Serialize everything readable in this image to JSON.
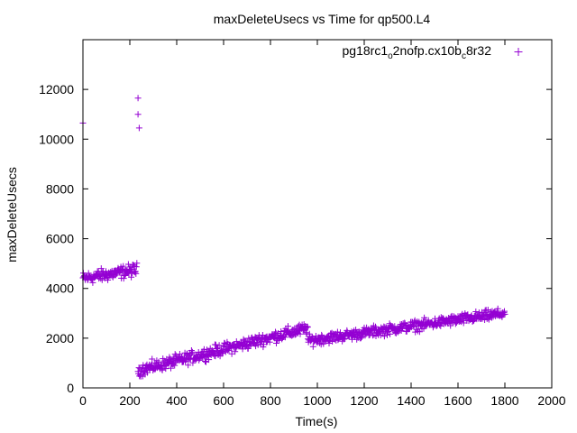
{
  "chart_data": {
    "type": "scatter",
    "title": "maxDeleteUsecs vs Time for qp500.L4",
    "xlabel": "Time(s)",
    "ylabel": "maxDeleteUsecs",
    "xlim": [
      0,
      2000
    ],
    "ylim": [
      0,
      14000
    ],
    "xticks": [
      0,
      200,
      400,
      600,
      800,
      1000,
      1200,
      1400,
      1600,
      1800,
      2000
    ],
    "yticks": [
      0,
      2000,
      4000,
      6000,
      8000,
      10000,
      12000
    ],
    "grid": false,
    "legend_position": "top-right",
    "legend": {
      "base": "pg18rc1",
      "sub1": "o",
      "mid": "2nofp.cx10b",
      "sub2": "c",
      "end": "8r32"
    },
    "color": "#9400d3",
    "marker": "plus",
    "series": [
      {
        "outliers": [
          [
            0,
            10650
          ],
          [
            235,
            11650
          ],
          [
            235,
            11000
          ],
          [
            240,
            10450
          ]
        ],
        "segments": [
          {
            "x_start": 0,
            "x_end": 230,
            "y_start": 4400,
            "y_end": 4750,
            "spread": 180,
            "step": 2
          },
          {
            "x_start": 235,
            "x_end": 960,
            "y_start": 700,
            "y_end": 2400,
            "spread": 170,
            "step": 2
          },
          {
            "x_start": 960,
            "x_end": 1800,
            "y_start": 1900,
            "y_end": 3000,
            "spread": 150,
            "step": 2
          }
        ]
      }
    ]
  }
}
